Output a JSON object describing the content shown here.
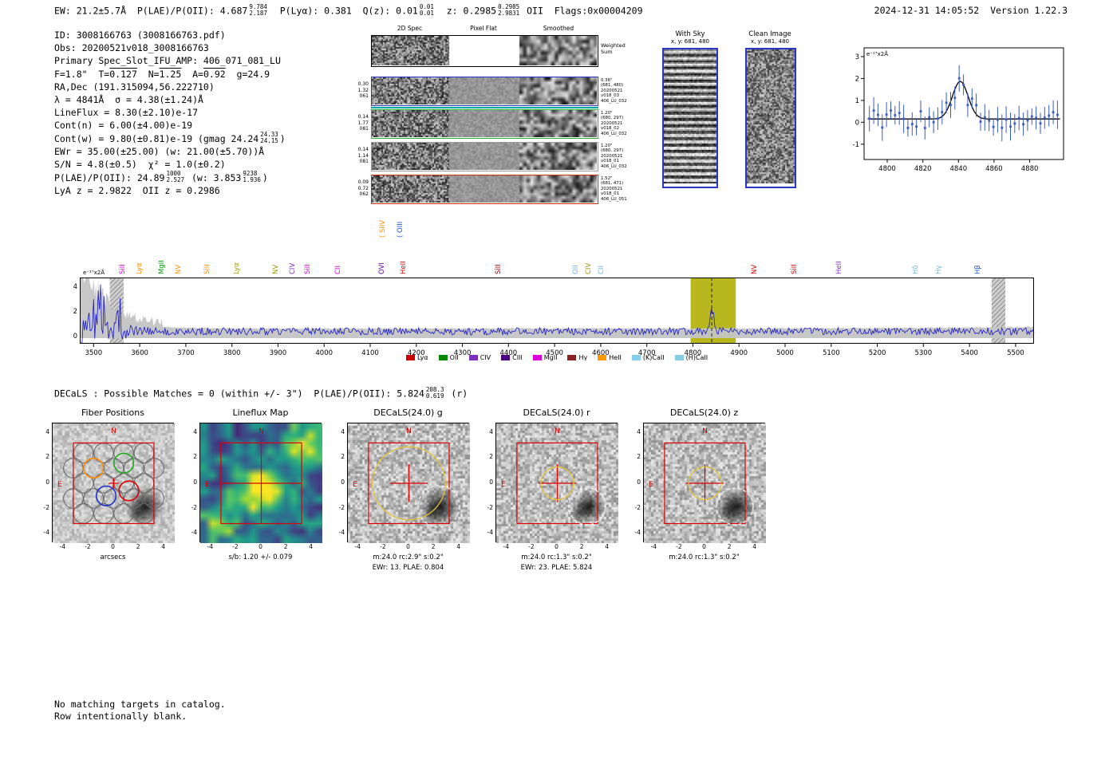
{
  "header": {
    "segments": [
      {
        "t": "EW: 21.2±5.7Å  P(LAE)/P(OII): 4.687"
      },
      {
        "stack": [
          "9.784",
          "2.187"
        ]
      },
      {
        "t": "  P(Lyα): 0.381  Q(z): 0.01"
      },
      {
        "stack": [
          "0.01",
          "0.01"
        ]
      },
      {
        "t": "  z: 0.2985"
      },
      {
        "stack": [
          "0.2985",
          "2.9831"
        ]
      },
      {
        "t": " OII  Flags:0x00004209"
      }
    ],
    "right": "2024-12-31 14:05:52  Version 1.22.3"
  },
  "info": {
    "lines": [
      [
        {
          "t": "ID: 3008166763 (3008166763.pdf)"
        }
      ],
      [
        {
          "t": "Obs: 20200521v018_3008166763"
        }
      ],
      [
        {
          "t": "Primary Spec_Slot_IFU_AMP: 406_071_081_LU"
        }
      ],
      [
        {
          "t": "F=1.8\"  T="
        },
        {
          "ol": "0.127"
        },
        {
          "t": "  N="
        },
        {
          "ol": "1.25"
        },
        {
          "t": "  A="
        },
        {
          "ol": "0.92"
        },
        {
          "t": "  g=24.9"
        }
      ],
      [
        {
          "t": "RA,Dec (191.315094,56.222710)"
        }
      ],
      [
        {
          "t": "λ = 4841Å  σ = 4.38(±1.24)Å"
        }
      ],
      [
        {
          "t": "LineFlux = 8.30(±2.10)e-17"
        }
      ],
      [
        {
          "t": "Cont(n) = 6.00(±4.00)e-19"
        }
      ],
      [
        {
          "t": "Cont(w) = 9.80(±0.81)e-19 (gmag 24.24"
        },
        {
          "stack": [
            "24.33",
            "24.15"
          ]
        },
        {
          "t": ")"
        }
      ],
      [
        {
          "t": "EWr = 35.00(±25.00) (w: 21.00(±5.70))Å"
        }
      ],
      [
        {
          "t": "S/N = 4.8(±0.5)  χ² = 1.0(±0.2)"
        }
      ],
      [
        {
          "t": "P(LAE)/P(OII): 24.89"
        },
        {
          "stack": [
            "1000",
            "2.527"
          ]
        },
        {
          "t": " (w: 3.853"
        },
        {
          "stack": [
            "9238",
            "1.936"
          ]
        },
        {
          "t": ")"
        }
      ],
      [
        {
          "t": "LyA z = 2.9822  OII z = 0.2986"
        }
      ]
    ]
  },
  "spec2d": {
    "col_headers": [
      "2D Spec",
      "Pixel Flat",
      "Smoothed"
    ],
    "weighted_sum_label": [
      "Weighted",
      "Sum"
    ],
    "rows": [
      {
        "kind": "weighted",
        "border": "#000000",
        "left": [],
        "right": []
      },
      {
        "kind": "exp",
        "border": "#2a35c8",
        "left": [
          "0.30",
          "1.32",
          "061"
        ],
        "right": [
          "0.36\"",
          "(681, 480)",
          "20200521",
          "v018_03",
          "406_LU_032"
        ]
      },
      {
        "kind": "exp",
        "border": "#22bb22",
        "left": [
          "0.14",
          "1.77",
          "081"
        ],
        "right": [
          "1.20\"",
          "(680, 297)",
          "20200521",
          "v018_02",
          "406_LU_032"
        ]
      },
      {
        "kind": "exp",
        "border": "#999999",
        "left": [
          "0.14",
          "1.14",
          "081"
        ],
        "right": [
          "1.20\"",
          "(680, 297)",
          "20200521",
          "v018_01",
          "406_LU_032"
        ]
      },
      {
        "kind": "exp",
        "border": "#d42a00",
        "left": [
          "0.09",
          "0.72",
          "062"
        ],
        "right": [
          "1.52\"",
          "(681, 471)",
          "20200521",
          "v018_01",
          "406_LU_051"
        ]
      }
    ]
  },
  "panels": {
    "with_sky": {
      "title": "With Sky",
      "subtitle": "x, y: 681, 480"
    },
    "clean": {
      "title": "Clean Image",
      "subtitle": "x, y: 681, 480"
    }
  },
  "decals": {
    "header_segments": [
      {
        "t": "DECaLS : Possible Matches = 0 (within +/- 3\")  P(LAE)/P(OII): 5.824"
      },
      {
        "stack": [
          "208.3",
          "0.619"
        ]
      },
      {
        "t": " (r)"
      }
    ],
    "axis_ticks": [
      "-4",
      "-2",
      "0",
      "2",
      "4"
    ],
    "compass": {
      "n": "N",
      "e": "E"
    },
    "panels": [
      {
        "key": "fibers",
        "title": "Fiber Positions",
        "xlabel": "arcsecs"
      },
      {
        "key": "lineflux",
        "title": "Lineflux Map",
        "xlabel": "s/b: 1.20 +/- 0.079"
      },
      {
        "key": "g",
        "title": "DECaLS(24.0) g",
        "xlabel": "m:24.0 rc:2.9\"  s:0.2\"",
        "sub": "EWr: 13. PLAE: 0.804",
        "aperture_arcsec": 2.9
      },
      {
        "key": "r",
        "title": "DECaLS(24.0) r",
        "xlabel": "m:24.0 rc:1.3\"  s:0.2\"",
        "sub": "EWr: 23. PLAE: 5.824",
        "aperture_arcsec": 1.3
      },
      {
        "key": "z",
        "title": "DECaLS(24.0) z",
        "xlabel": "m:24.0 rc:1.3\"  s:0.2\"",
        "aperture_arcsec": 1.3
      }
    ]
  },
  "footer": {
    "lines": [
      "No matching targets in catalog.",
      "Row intentionally blank."
    ]
  },
  "chart_data": [
    {
      "id": "zoom_line_fit",
      "type": "scatter",
      "unit_label": "e⁻¹⁷x2Å",
      "x_ticks": [
        4800,
        4820,
        4840,
        4860,
        4880
      ],
      "y_ticks": [
        3,
        2,
        1,
        0,
        -1
      ],
      "x_range": [
        4787,
        4899
      ],
      "y_range": [
        -1.7,
        3.4
      ],
      "marker_color": "#3a5bc7",
      "fit_gaussian": {
        "center": 4841,
        "sigma": 4.38,
        "amplitude": 1.72,
        "baseline": 0.15
      },
      "description": "blue flux points with error bars; black gaussian emission-line fit at 4841Å"
    },
    {
      "id": "full_spectrum",
      "type": "line",
      "unit_label": "e⁻¹⁷x2Å",
      "x_ticks": [
        3500,
        3600,
        3700,
        3800,
        3900,
        4000,
        4100,
        4200,
        4300,
        4400,
        4500,
        4600,
        4700,
        4800,
        4900,
        5000,
        5100,
        5200,
        5300,
        5400,
        5500
      ],
      "y_ticks": [
        0,
        2,
        4
      ],
      "x_range": [
        3470,
        5540
      ],
      "y_range": [
        -0.55,
        4.8
      ],
      "line_color": "#1717c9",
      "error_band_color": "#c4c4c4",
      "detect_line": 4841,
      "highlight_band": {
        "x0": 4795,
        "x1": 4893,
        "color": "#b8b81e"
      },
      "hatched_bands": [
        [
          3535,
          3565
        ],
        [
          5448,
          5478
        ]
      ],
      "continuum_level_e17": 0.45,
      "emission_peak": {
        "wave": 4841,
        "amplitude_e17": 1.9
      },
      "line_labels": [
        {
          "label": "SiII",
          "wave": 3565,
          "color": "#cc00cc"
        },
        {
          "label": "Lyα",
          "wave": 3602,
          "color": "#ff8c00"
        },
        {
          "label": "MgII",
          "wave": 3650,
          "color": "#009900"
        },
        {
          "label": "NV",
          "wave": 3686,
          "color": "#ff8c00"
        },
        {
          "label": "SiII",
          "wave": 3748,
          "color": "#ff8c00"
        },
        {
          "label": "Lyα",
          "wave": 3812,
          "color": "#999900"
        },
        {
          "label": "NV",
          "wave": 3897,
          "color": "#999900"
        },
        {
          "label": "CIV",
          "wave": 3934,
          "color": "#7b2fbe"
        },
        {
          "label": "SiII",
          "wave": 3966,
          "color": "#cc00cc"
        },
        {
          "label": "CII",
          "wave": 4032,
          "color": "#cc00cc"
        },
        {
          "label": "OVI",
          "wave": 4128,
          "color": "#5b00a5"
        },
        {
          "label": "HeII",
          "wave": 4174,
          "color": "#cc0000"
        },
        {
          "label": "SiII",
          "wave": 4380,
          "color": "#8b0000"
        },
        {
          "label": "OII",
          "wave": 4548,
          "color": "#6fb7d9"
        },
        {
          "label": "CIV",
          "wave": 4576,
          "color": "#999900"
        },
        {
          "label": "CII",
          "wave": 4604,
          "color": "#6fb7d9"
        },
        {
          "label": "NV",
          "wave": 4936,
          "color": "#cc0000"
        },
        {
          "label": "SiII",
          "wave": 5022,
          "color": "#cc0000"
        },
        {
          "label": "HeII",
          "wave": 5120,
          "color": "#7b2fbe"
        },
        {
          "label": "Hδ",
          "wave": 5286,
          "color": "#6fb7d9"
        },
        {
          "label": "Hγ",
          "wave": 5336,
          "color": "#6fb7d9"
        },
        {
          "label": "Hβ",
          "wave": 5420,
          "color": "#2255cc"
        }
      ],
      "raised_labels": [
        {
          "label": "( SiIV",
          "wave": 4130,
          "color": "#ff8c00"
        },
        {
          "label": "( OIII",
          "wave": 4168,
          "color": "#2255cc"
        }
      ],
      "legend": [
        {
          "label": "Lyα",
          "color": "#cc0000"
        },
        {
          "label": "OII",
          "color": "#008800"
        },
        {
          "label": "CIV",
          "color": "#7b2fbe"
        },
        {
          "label": "CIII",
          "color": "#4b0082"
        },
        {
          "label": "MgII",
          "color": "#dd00dd"
        },
        {
          "label": "Hγ",
          "color": "#8b2222"
        },
        {
          "label": "HeII",
          "color": "#ff9900"
        },
        {
          "label": "(K)CaII",
          "color": "#87ceeb"
        },
        {
          "label": "(H)CaII",
          "color": "#87ceeb"
        }
      ]
    }
  ]
}
